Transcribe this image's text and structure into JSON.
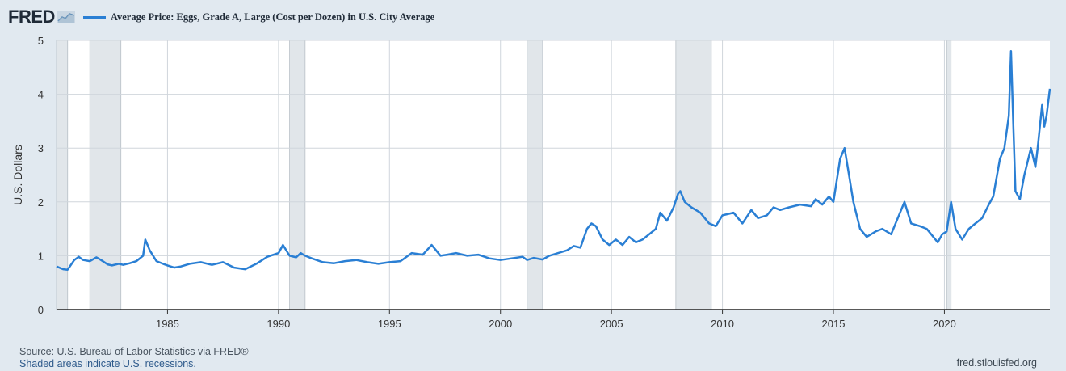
{
  "logo": {
    "text": "FRED"
  },
  "legend": {
    "label": "Average Price: Eggs, Grade A, Large (Cost per Dozen) in U.S. City Average",
    "color": "#2a7fd4"
  },
  "footer": {
    "source": "Source: U.S. Bureau of Labor Statistics via FRED®",
    "recessions": "Shaded areas indicate U.S. recessions.",
    "site": "fred.stlouisfed.org"
  },
  "colors": {
    "background": "#e1e9f0",
    "plot": "#ffffff",
    "line": "#2a7fd4",
    "recession": "#e1e6ea",
    "grid": "#d0d6dc"
  },
  "chart_data": {
    "type": "line",
    "ylabel": "U.S. Dollars",
    "xlim": [
      1980.0,
      2024.75
    ],
    "ylim": [
      0,
      5
    ],
    "x_ticks": [
      1985,
      1990,
      1995,
      2000,
      2005,
      2010,
      2015,
      2020
    ],
    "y_ticks": [
      0,
      1,
      2,
      3,
      4,
      5
    ],
    "grid": true,
    "recessions": [
      [
        1980.0,
        1980.5
      ],
      [
        1981.5,
        1982.9
      ],
      [
        1990.5,
        1991.2
      ],
      [
        2001.2,
        2001.9
      ],
      [
        2007.9,
        2009.5
      ],
      [
        2020.1,
        2020.3
      ]
    ],
    "series": [
      {
        "name": "Average Price: Eggs, Grade A, Large (Cost per Dozen) in U.S. City Average",
        "x": [
          1980.0,
          1980.3,
          1980.5,
          1980.8,
          1981.0,
          1981.2,
          1981.5,
          1981.8,
          1982.0,
          1982.3,
          1982.5,
          1982.8,
          1983.0,
          1983.3,
          1983.6,
          1983.9,
          1984.0,
          1984.2,
          1984.5,
          1984.8,
          1985.0,
          1985.3,
          1985.6,
          1986.0,
          1986.5,
          1987.0,
          1987.5,
          1988.0,
          1988.5,
          1989.0,
          1989.5,
          1990.0,
          1990.2,
          1990.5,
          1990.8,
          1991.0,
          1991.2,
          1991.5,
          1992.0,
          1992.5,
          1993.0,
          1993.5,
          1994.0,
          1994.5,
          1995.0,
          1995.5,
          1996.0,
          1996.5,
          1996.9,
          1997.3,
          1997.6,
          1998.0,
          1998.5,
          1999.0,
          1999.5,
          2000.0,
          2000.5,
          2001.0,
          2001.2,
          2001.5,
          2001.9,
          2002.2,
          2002.6,
          2003.0,
          2003.3,
          2003.6,
          2003.9,
          2004.1,
          2004.3,
          2004.6,
          2004.9,
          2005.2,
          2005.5,
          2005.8,
          2006.1,
          2006.4,
          2006.7,
          2007.0,
          2007.2,
          2007.5,
          2007.8,
          2008.0,
          2008.1,
          2008.3,
          2008.6,
          2009.0,
          2009.4,
          2009.7,
          2010.0,
          2010.5,
          2010.9,
          2011.3,
          2011.6,
          2012.0,
          2012.3,
          2012.6,
          2013.0,
          2013.5,
          2014.0,
          2014.2,
          2014.5,
          2014.8,
          2015.0,
          2015.3,
          2015.5,
          2015.7,
          2015.9,
          2016.2,
          2016.5,
          2016.9,
          2017.2,
          2017.6,
          2017.9,
          2018.0,
          2018.2,
          2018.5,
          2018.9,
          2019.2,
          2019.5,
          2019.7,
          2019.9,
          2020.1,
          2020.3,
          2020.5,
          2020.8,
          2021.1,
          2021.4,
          2021.7,
          2022.0,
          2022.2,
          2022.5,
          2022.7,
          2022.9,
          2023.0,
          2023.1,
          2023.2,
          2023.4,
          2023.6,
          2023.9,
          2024.1,
          2024.2,
          2024.4,
          2024.5,
          2024.6,
          2024.75
        ],
        "values": [
          0.8,
          0.75,
          0.74,
          0.92,
          0.98,
          0.92,
          0.9,
          0.97,
          0.92,
          0.84,
          0.82,
          0.85,
          0.83,
          0.86,
          0.9,
          1.0,
          1.3,
          1.1,
          0.9,
          0.85,
          0.82,
          0.78,
          0.8,
          0.85,
          0.88,
          0.83,
          0.88,
          0.78,
          0.75,
          0.85,
          0.98,
          1.05,
          1.2,
          1.0,
          0.97,
          1.05,
          1.0,
          0.95,
          0.88,
          0.86,
          0.9,
          0.92,
          0.88,
          0.85,
          0.88,
          0.9,
          1.05,
          1.02,
          1.2,
          1.0,
          1.02,
          1.05,
          1.0,
          1.02,
          0.95,
          0.92,
          0.95,
          0.98,
          0.92,
          0.96,
          0.93,
          1.0,
          1.05,
          1.1,
          1.18,
          1.15,
          1.5,
          1.6,
          1.55,
          1.3,
          1.2,
          1.3,
          1.2,
          1.35,
          1.25,
          1.3,
          1.4,
          1.5,
          1.8,
          1.65,
          1.9,
          2.15,
          2.2,
          2.0,
          1.9,
          1.8,
          1.6,
          1.55,
          1.75,
          1.8,
          1.6,
          1.85,
          1.7,
          1.75,
          1.9,
          1.85,
          1.9,
          1.95,
          1.92,
          2.05,
          1.95,
          2.1,
          2.0,
          2.8,
          3.0,
          2.5,
          2.0,
          1.5,
          1.35,
          1.45,
          1.5,
          1.4,
          1.7,
          1.8,
          2.0,
          1.6,
          1.55,
          1.5,
          1.35,
          1.25,
          1.4,
          1.45,
          2.0,
          1.5,
          1.3,
          1.5,
          1.6,
          1.7,
          1.95,
          2.1,
          2.8,
          3.0,
          3.6,
          4.8,
          3.5,
          2.2,
          2.05,
          2.5,
          3.0,
          2.65,
          3.0,
          3.8,
          3.4,
          3.6,
          4.1
        ]
      }
    ]
  }
}
